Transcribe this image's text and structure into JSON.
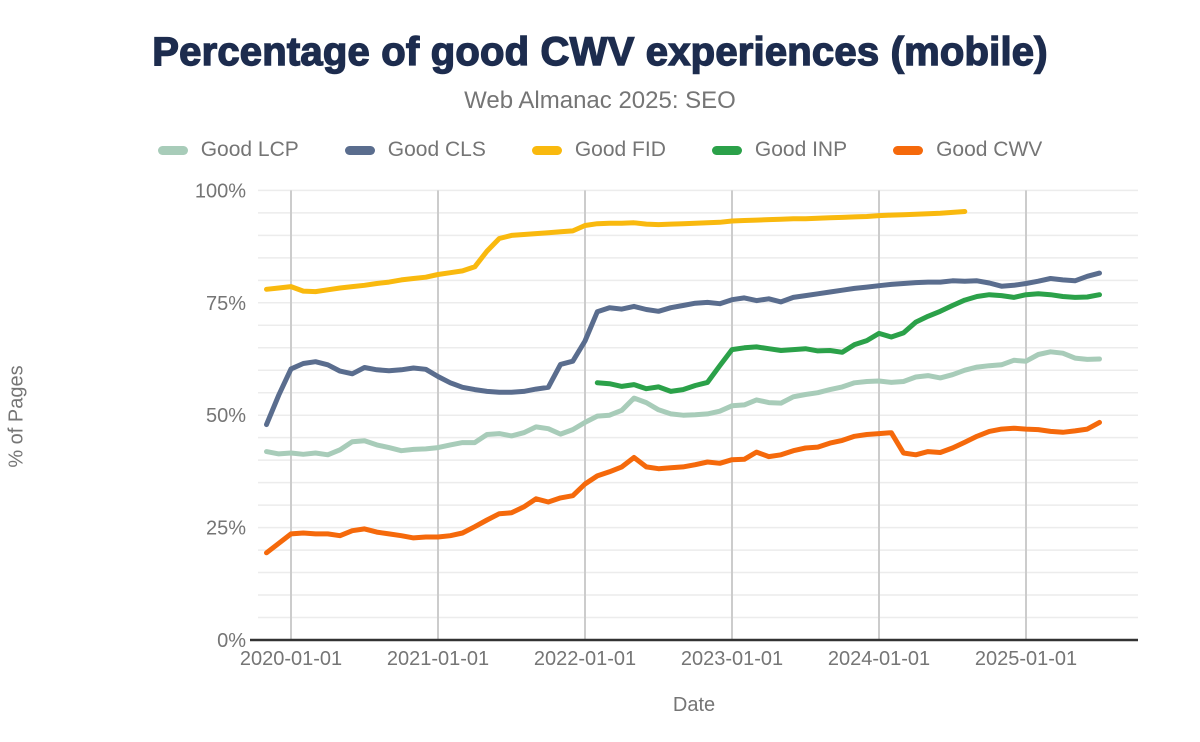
{
  "title": "Percentage of good CWV experiences (mobile)",
  "subtitle": "Web Almanac 2025: SEO",
  "axes": {
    "x_label": "Date",
    "y_label": "% of Pages"
  },
  "colors": {
    "title": "#1d2c4e",
    "subtitle": "#757575",
    "tick_label": "#757575",
    "axis_line": "#333333",
    "year_gridline": "#cccccc",
    "minor_gridline": "#ececec",
    "background": "#ffffff"
  },
  "chart_data": {
    "type": "line",
    "title": "Percentage of good CWV experiences (mobile)",
    "subtitle": "Web Almanac 2025: SEO",
    "xlabel": "Date",
    "ylabel": "% of Pages",
    "ylim": [
      0,
      100
    ],
    "y_tick_step": 25,
    "y_minor_grid_step": 5,
    "legend_position": "top",
    "x_interval": "monthly",
    "x_start": "2019-11",
    "x_end": "2025-07",
    "x_tick_labels": [
      "2020-01-01",
      "2021-01-01",
      "2022-01-01",
      "2023-01-01",
      "2024-01-01",
      "2025-01-01"
    ],
    "y_tick_labels": [
      "0%",
      "25%",
      "50%",
      "75%",
      "100%"
    ],
    "y_tick_values": [
      0,
      25,
      50,
      75,
      100
    ],
    "series": [
      {
        "name": "Good LCP",
        "color": "#a8ccb9",
        "start": "2019-11",
        "values": [
          41.9,
          41.4,
          41.6,
          41.3,
          41.6,
          41.2,
          42.3,
          44.1,
          44.3,
          43.4,
          42.8,
          42.1,
          42.4,
          42.5,
          42.8,
          43.4,
          43.9,
          43.9,
          45.7,
          45.9,
          45.4,
          46.1,
          47.4,
          47.0,
          45.8,
          46.8,
          48.4,
          49.8,
          50.0,
          51.1,
          53.8,
          52.8,
          51.2,
          50.3,
          50.0,
          50.1,
          50.3,
          50.9,
          52.1,
          52.3,
          53.4,
          52.8,
          52.7,
          54.1,
          54.6,
          55.0,
          55.7,
          56.3,
          57.2,
          57.5,
          57.6,
          57.3,
          57.5,
          58.5,
          58.8,
          58.3,
          59.0,
          60.0,
          60.7,
          61.0,
          61.2,
          62.2,
          62.0,
          63.5,
          64.1,
          63.8,
          62.7,
          62.4,
          62.5
        ]
      },
      {
        "name": "Good CLS",
        "color": "#5a6d8e",
        "start": "2019-11",
        "values": [
          47.9,
          54.5,
          60.3,
          61.5,
          61.9,
          61.2,
          59.8,
          59.2,
          60.6,
          60.1,
          59.9,
          60.1,
          60.5,
          60.2,
          58.6,
          57.2,
          56.2,
          55.7,
          55.3,
          55.1,
          55.1,
          55.3,
          55.8,
          56.2,
          61.3,
          62.0,
          66.5,
          73.0,
          73.9,
          73.6,
          74.2,
          73.5,
          73.1,
          73.9,
          74.4,
          74.9,
          75.1,
          74.8,
          75.7,
          76.1,
          75.5,
          75.9,
          75.2,
          76.2,
          76.6,
          77.0,
          77.4,
          77.8,
          78.2,
          78.5,
          78.8,
          79.1,
          79.3,
          79.5,
          79.6,
          79.6,
          79.9,
          79.8,
          79.9,
          79.4,
          78.7,
          78.9,
          79.3,
          79.8,
          80.4,
          80.1,
          79.9,
          80.9,
          81.6
        ]
      },
      {
        "name": "Good FID",
        "color": "#f9b90e",
        "start": "2019-11",
        "values": [
          78.0,
          78.3,
          78.6,
          77.6,
          77.5,
          77.9,
          78.3,
          78.6,
          78.9,
          79.3,
          79.6,
          80.1,
          80.4,
          80.7,
          81.3,
          81.7,
          82.1,
          83.0,
          86.5,
          89.3,
          90.0,
          90.2,
          90.4,
          90.6,
          90.8,
          91.0,
          92.2,
          92.6,
          92.7,
          92.7,
          92.8,
          92.5,
          92.4,
          92.5,
          92.6,
          92.7,
          92.8,
          92.9,
          93.2,
          93.3,
          93.4,
          93.5,
          93.6,
          93.7,
          93.7,
          93.8,
          93.9,
          94.0,
          94.1,
          94.2,
          94.4,
          94.5,
          94.6,
          94.7,
          94.8,
          94.9,
          95.1,
          95.3
        ]
      },
      {
        "name": "Good INP",
        "color": "#2ba149",
        "start": "2022-02",
        "values": [
          57.2,
          57.0,
          56.4,
          56.8,
          55.9,
          56.3,
          55.3,
          55.7,
          56.6,
          57.3,
          61.0,
          64.6,
          65.0,
          65.2,
          64.8,
          64.4,
          64.6,
          64.8,
          64.3,
          64.4,
          64.0,
          65.7,
          66.6,
          68.2,
          67.4,
          68.3,
          70.7,
          72.0,
          73.1,
          74.4,
          75.6,
          76.4,
          76.8,
          76.6,
          76.2,
          76.8,
          77.0,
          76.8,
          76.4,
          76.2,
          76.3,
          76.8
        ]
      },
      {
        "name": "Good CWV",
        "color": "#f5690b",
        "start": "2019-11",
        "values": [
          19.4,
          21.5,
          23.6,
          23.8,
          23.6,
          23.6,
          23.2,
          24.3,
          24.7,
          24.0,
          23.6,
          23.2,
          22.7,
          22.9,
          22.9,
          23.2,
          23.8,
          25.2,
          26.7,
          28.1,
          28.3,
          29.6,
          31.4,
          30.7,
          31.6,
          32.1,
          34.7,
          36.5,
          37.4,
          38.5,
          40.6,
          38.5,
          38.1,
          38.3,
          38.5,
          39.0,
          39.6,
          39.3,
          40.1,
          40.2,
          41.8,
          40.8,
          41.2,
          42.1,
          42.7,
          42.9,
          43.8,
          44.4,
          45.3,
          45.7,
          45.9,
          46.1,
          41.6,
          41.2,
          41.9,
          41.7,
          42.7,
          44.0,
          45.3,
          46.4,
          46.9,
          47.1,
          46.9,
          46.8,
          46.4,
          46.2,
          46.5,
          46.9,
          48.4
        ]
      }
    ]
  }
}
